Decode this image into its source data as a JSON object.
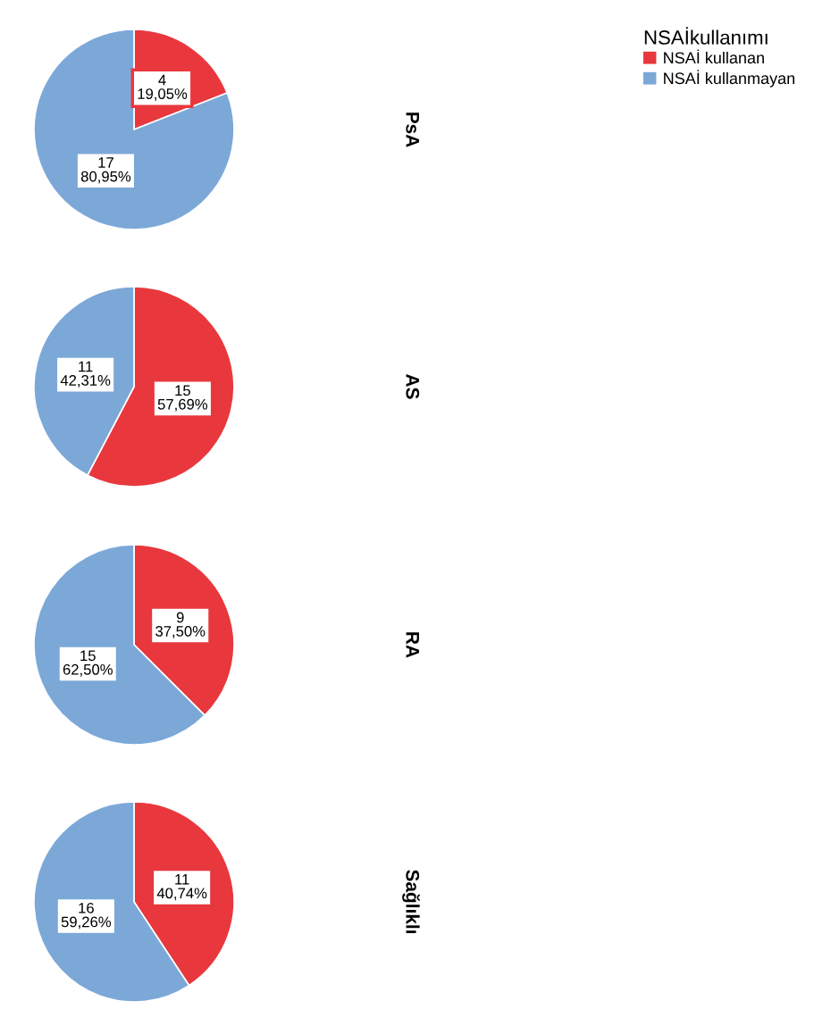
{
  "chart_data": [
    {
      "type": "pie",
      "title": "PsA",
      "legend_title": "NSAİkullanımı",
      "legend": "top right",
      "categories": [
        "NSAİ kullanan",
        "NSAİ kullanmayan"
      ],
      "values": [
        4,
        17
      ],
      "colors": [
        "#e8383d",
        "#7ca8d8"
      ],
      "value_labels": [
        "4\n19,05%",
        "17\n80,95%"
      ]
    },
    {
      "type": "pie",
      "title": "AS",
      "categories": [
        null,
        null
      ],
      "values": [
        15,
        11
      ],
      "colors": [
        "#e8383d",
        "#7ca8d8"
      ],
      "value_labels": [
        "15\n57,69%",
        "11\n42,31%"
      ]
    },
    {
      "type": "pie",
      "title": "RA",
      "categories": [
        null,
        null
      ],
      "values": [
        9,
        15
      ],
      "colors": [
        "#e8383d",
        "#7ca8d8"
      ],
      "value_labels": [
        "9\n37,50%",
        "15\n62,50%"
      ]
    },
    {
      "type": "pie",
      "title": "Sağlıklı",
      "categories": [
        null,
        null
      ],
      "values": [
        11,
        16
      ],
      "colors": [
        "#e8383d",
        "#7ca8d8"
      ],
      "value_labels": [
        "11\n40,74%",
        "16\n59,26%"
      ]
    }
  ]
}
